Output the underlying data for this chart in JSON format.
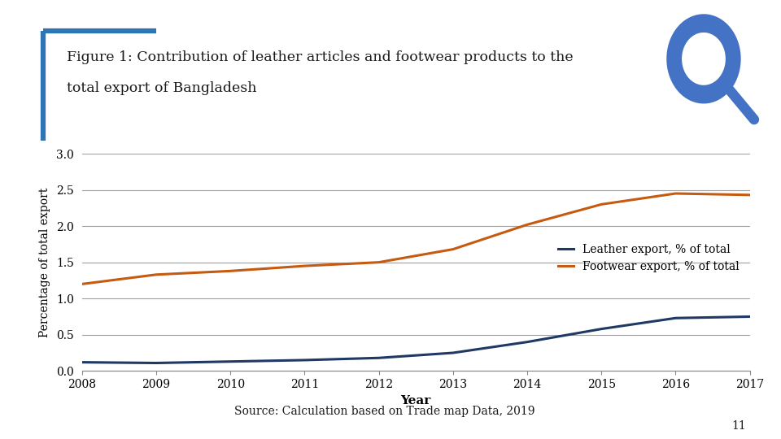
{
  "title_line1": "Figure 1: Contribution of leather articles and footwear products to the",
  "title_line2": "total export of Bangladesh",
  "xlabel": "Year",
  "ylabel": "Percentage of total export",
  "source": "Source: Calculation based on Trade map Data, 2019",
  "years": [
    2008,
    2009,
    2010,
    2011,
    2012,
    2013,
    2014,
    2015,
    2016,
    2017
  ],
  "leather_data": [
    0.12,
    0.11,
    0.13,
    0.15,
    0.18,
    0.25,
    0.4,
    0.58,
    0.73,
    0.75
  ],
  "footwear_data": [
    1.2,
    1.33,
    1.38,
    1.45,
    1.5,
    1.68,
    2.02,
    2.3,
    2.45,
    2.43
  ],
  "leather_color": "#1f3864",
  "footwear_color": "#c55a11",
  "ylim": [
    0.0,
    3.0
  ],
  "yticks": [
    0.0,
    0.5,
    1.0,
    1.5,
    2.0,
    2.5,
    3.0
  ],
  "legend_leather": "Leather export, % of total",
  "legend_footwear": "Footwear export, % of total",
  "bg_color": "#ffffff",
  "page_number": "11",
  "accent_color": "#2e75b6",
  "search_icon_color": "#4472c4"
}
